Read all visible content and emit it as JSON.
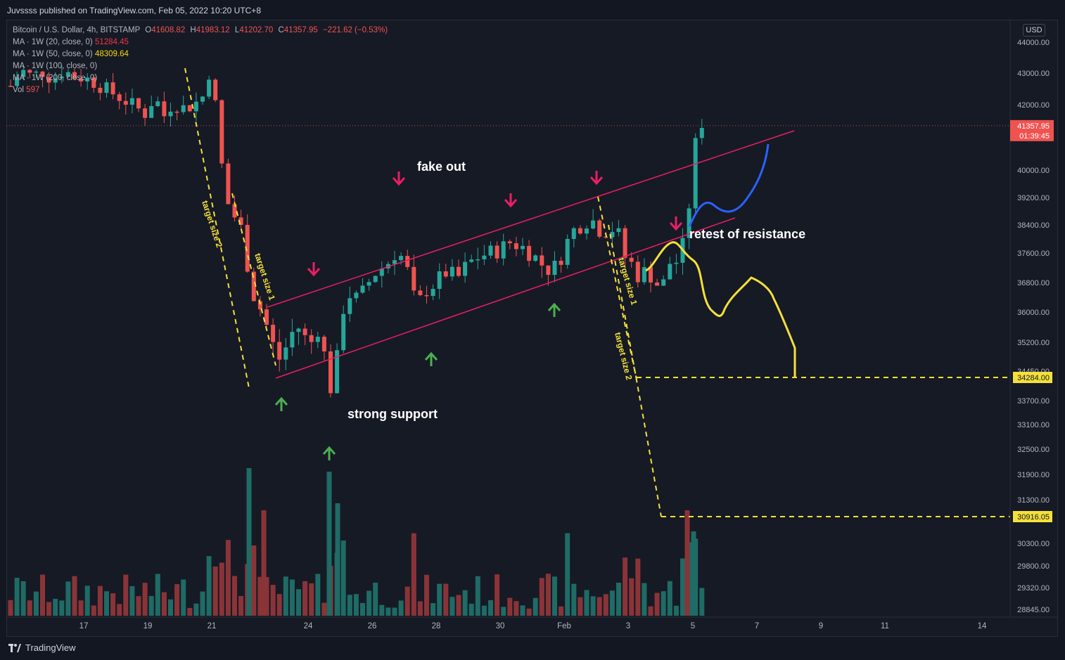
{
  "header": {
    "publisher": "Juvssss published on TradingView.com, Feb 05, 2022 10:20 UTC+8"
  },
  "legend": {
    "symbol": "Bitcoin / U.S. Dollar, 4h, BITSTAMP",
    "ohlc": {
      "o_label": "O",
      "o": "41608.82",
      "h_label": "H",
      "h": "41983.12",
      "l_label": "L",
      "l": "41202.70",
      "c_label": "C",
      "c": "41357.95",
      "chg": "−221.62 (−0.53%)"
    },
    "ma": [
      {
        "label": "MA · 1W (20, close, 0)",
        "value": "51284.45",
        "color": "#f23645"
      },
      {
        "label": "MA · 1W (50, close, 0)",
        "value": "48309.64",
        "color": "#f5d90a"
      },
      {
        "label": "MA · 1W (100, close, 0)",
        "value": ""
      },
      {
        "label": "MA · 1W (200, close, 0)",
        "value": ""
      }
    ],
    "vol_label": "Vol",
    "vol_value": "597"
  },
  "currency_button": "USD",
  "footer": {
    "brand": "TradingView"
  },
  "colors": {
    "up": "#26a69a",
    "down": "#ef5350",
    "vol_up": "#1f6b65",
    "vol_down": "#8a3438",
    "channel": "#e91e63",
    "yellow": "#f5e03a",
    "blue": "#2962ff",
    "green_arrow": "#4caf50",
    "pink_arrow": "#e91e63"
  },
  "chart_data": {
    "type": "candlestick",
    "title": "Bitcoin / U.S. Dollar, 4h, BITSTAMP",
    "y_ticks": [
      "44000.00",
      "43000.00",
      "42000.00",
      "40000.00",
      "39200.00",
      "38400.00",
      "37600.00",
      "36800.00",
      "36000.00",
      "35200.00",
      "34450.00",
      "33700.00",
      "33100.00",
      "32500.00",
      "31900.00",
      "31300.00",
      "30300.00",
      "29800.00",
      "29320.00",
      "28845.00"
    ],
    "x_ticks": [
      "17",
      "19",
      "21",
      "24",
      "26",
      "28",
      "30",
      "Feb",
      "3",
      "5",
      "7",
      "9",
      "11",
      "14"
    ],
    "price_badges": [
      {
        "label": "41357.95",
        "sub": "01:39:45",
        "value": 41357.95
      },
      {
        "label": "34284.00",
        "value": 34284.0
      },
      {
        "label": "30916.05",
        "value": 30916.05
      }
    ],
    "annotations": {
      "fake_out": "fake out",
      "strong_support": "strong support",
      "retest": "retest of resistance",
      "target_size_1": "target size 1",
      "target_size_2": "target size 2"
    },
    "price_range_approx": [
      33100,
      43500
    ],
    "series_note": "4h candles from Jan 15 to Feb 5 2022"
  }
}
